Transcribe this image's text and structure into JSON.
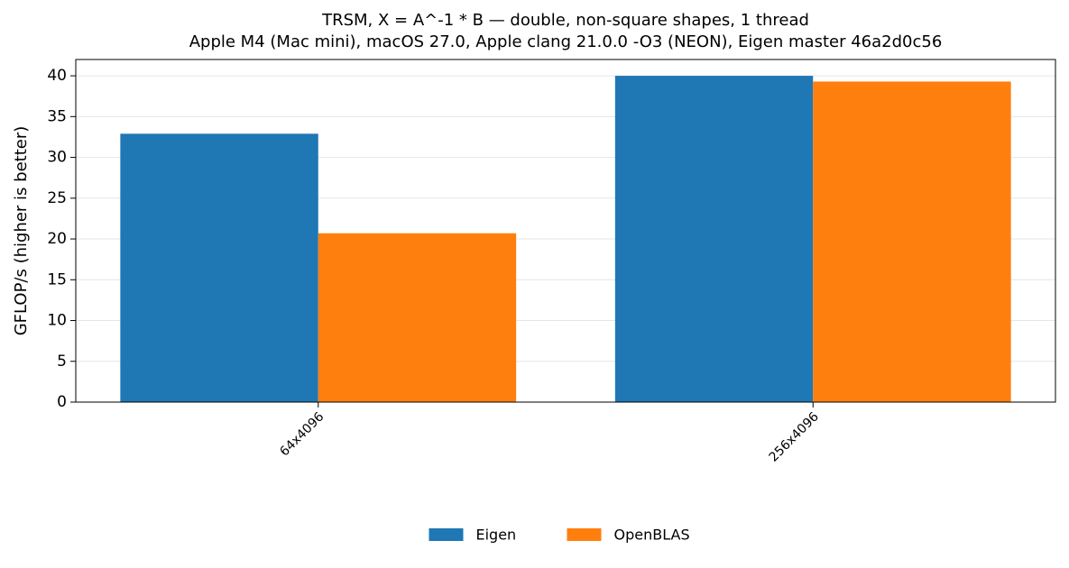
{
  "chart_data": {
    "type": "bar",
    "title": "TRSM, X = A^-1 * B — double, non-square shapes, 1 thread",
    "subtitle": "Apple M4 (Mac mini), macOS 27.0, Apple clang 21.0.0 -O3 (NEON), Eigen master 46a2d0c56",
    "y_label": "GFLOP/s (higher is better)",
    "categories": [
      "64x4096",
      "256x4096"
    ],
    "series": [
      {
        "name": "Eigen",
        "color": "#1f77b4",
        "values": [
          32.9,
          40.0
        ]
      },
      {
        "name": "OpenBLAS",
        "color": "#ff7f0e",
        "values": [
          20.7,
          39.3
        ]
      }
    ],
    "ylim": [
      0,
      42
    ],
    "yticks": [
      0,
      5,
      10,
      15,
      20,
      25,
      30,
      35,
      40
    ],
    "grid": true,
    "legend": "bottom"
  }
}
